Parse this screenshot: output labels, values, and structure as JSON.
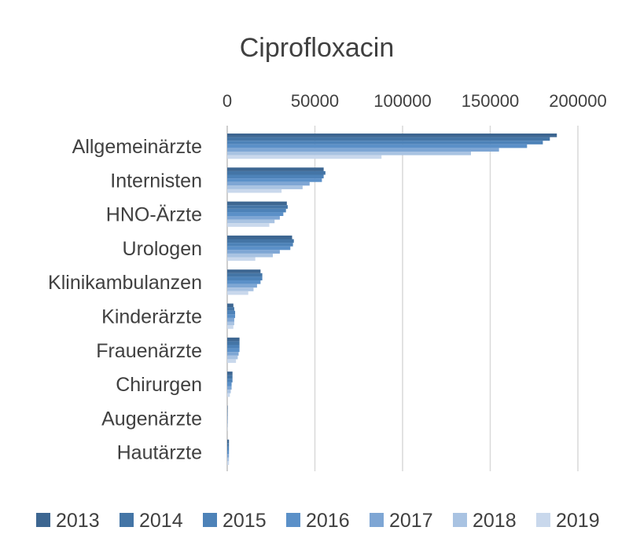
{
  "chart_data": {
    "type": "bar",
    "orientation": "horizontal",
    "title": "Ciprofloxacin",
    "xlim": [
      0,
      200000
    ],
    "x_ticks": [
      "0",
      "50000",
      "100000",
      "150000",
      "200000"
    ],
    "x_tick_values": [
      0,
      50000,
      100000,
      150000,
      200000
    ],
    "grid": true,
    "legend_position": "bottom",
    "categories": [
      "Allgemeinärzte",
      "Internisten",
      "HNO-Ärzte",
      "Urologen",
      "Klinikambulanzen",
      "Kinderärzte",
      "Frauenärzte",
      "Chirurgen",
      "Augenärzte",
      "Hautärzte"
    ],
    "series": [
      {
        "name": "2013",
        "color": "#3d6691",
        "values": [
          188000,
          55000,
          34000,
          37000,
          19000,
          3500,
          7000,
          3000,
          200,
          1000
        ]
      },
      {
        "name": "2014",
        "color": "#4475a6",
        "values": [
          184000,
          56000,
          34500,
          38000,
          20000,
          4000,
          7000,
          3000,
          200,
          1000
        ]
      },
      {
        "name": "2015",
        "color": "#4d82b8",
        "values": [
          180000,
          55000,
          33500,
          37500,
          20000,
          4500,
          7000,
          3000,
          200,
          1000
        ]
      },
      {
        "name": "2016",
        "color": "#5b90c8",
        "values": [
          171000,
          54000,
          32000,
          36000,
          19000,
          4500,
          7000,
          2500,
          200,
          1000
        ]
      },
      {
        "name": "2017",
        "color": "#7ea6d4",
        "values": [
          155000,
          47000,
          30000,
          30000,
          17000,
          4000,
          6500,
          2500,
          200,
          1000
        ]
      },
      {
        "name": "2018",
        "color": "#a9c3e2",
        "values": [
          139000,
          43000,
          27000,
          26000,
          15000,
          4000,
          6000,
          2000,
          200,
          1000
        ]
      },
      {
        "name": "2019",
        "color": "#c9d8ec",
        "values": [
          88000,
          31000,
          24000,
          16000,
          12000,
          3500,
          5000,
          1500,
          200,
          1000
        ]
      }
    ]
  }
}
